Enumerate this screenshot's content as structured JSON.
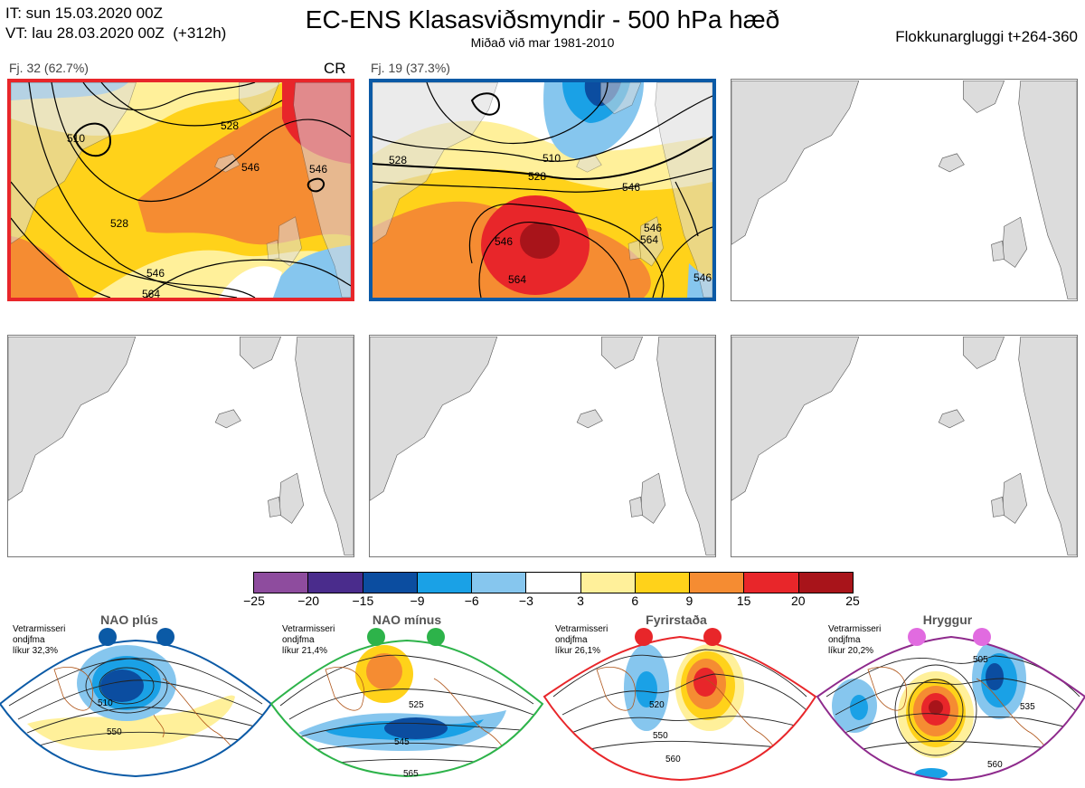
{
  "header": {
    "it_line": "IT: sun 15.03.2020 00Z",
    "vt_line": "VT: lau 28.03.2020 00Z  (+312h)",
    "title": "EC-ENS Klasasviðsmyndir - 500 hPa hæð",
    "subtitle": "Miðað við mar 1981-2010",
    "window": "Flokkunargluggi t+264-360"
  },
  "panels": [
    {
      "label": "Fj. 32 (62.7%)",
      "tag": "CR",
      "border": "#e8262a",
      "contours": [
        "510",
        "528",
        "546",
        "546",
        "528",
        "546",
        "564"
      ]
    },
    {
      "label": "Fj. 19 (37.3%)",
      "tag": "",
      "border": "#0b5aa6",
      "contours": [
        "546",
        "510",
        "528",
        "528",
        "546",
        "546",
        "564",
        "564",
        "546"
      ]
    }
  ],
  "colorbar": {
    "ticks": [
      "−25",
      "−20",
      "−15",
      "−9",
      "−6",
      "−3",
      "3",
      "6",
      "9",
      "15",
      "20",
      "25"
    ],
    "colors": [
      "#8e4c9e",
      "#4a2c8c",
      "#0b4da0",
      "#1aa1e6",
      "#86c6ee",
      "#ffffff",
      "#fff09a",
      "#ffd21a",
      "#f58c32",
      "#e8262a",
      "#a8141a"
    ]
  },
  "regimes": [
    {
      "name": "NAO plús",
      "info1": "Vetrarmisseri",
      "info2": "ondjfma",
      "info3": "líkur 32,3%",
      "color": "#0b5aa6",
      "contours": [
        "510",
        "550"
      ]
    },
    {
      "name": "NAO mínus",
      "info1": "Vetrarmisseri",
      "info2": "ondjfma",
      "info3": "líkur 21,4%",
      "color": "#2db34a",
      "contours": [
        "525",
        "545",
        "565"
      ]
    },
    {
      "name": "Fyrirstaða",
      "info1": "Vetrarmisseri",
      "info2": "ondjfma",
      "info3": "líkur 26,1%",
      "color": "#e8262a",
      "contours": [
        "520",
        "550",
        "560"
      ]
    },
    {
      "name": "Hryggur",
      "info1": "Vetrarmisseri",
      "info2": "ondjfma",
      "info3": "líkur 20,2%",
      "color": "#8e2a8c",
      "contours": [
        "505",
        "535",
        "560"
      ]
    }
  ]
}
